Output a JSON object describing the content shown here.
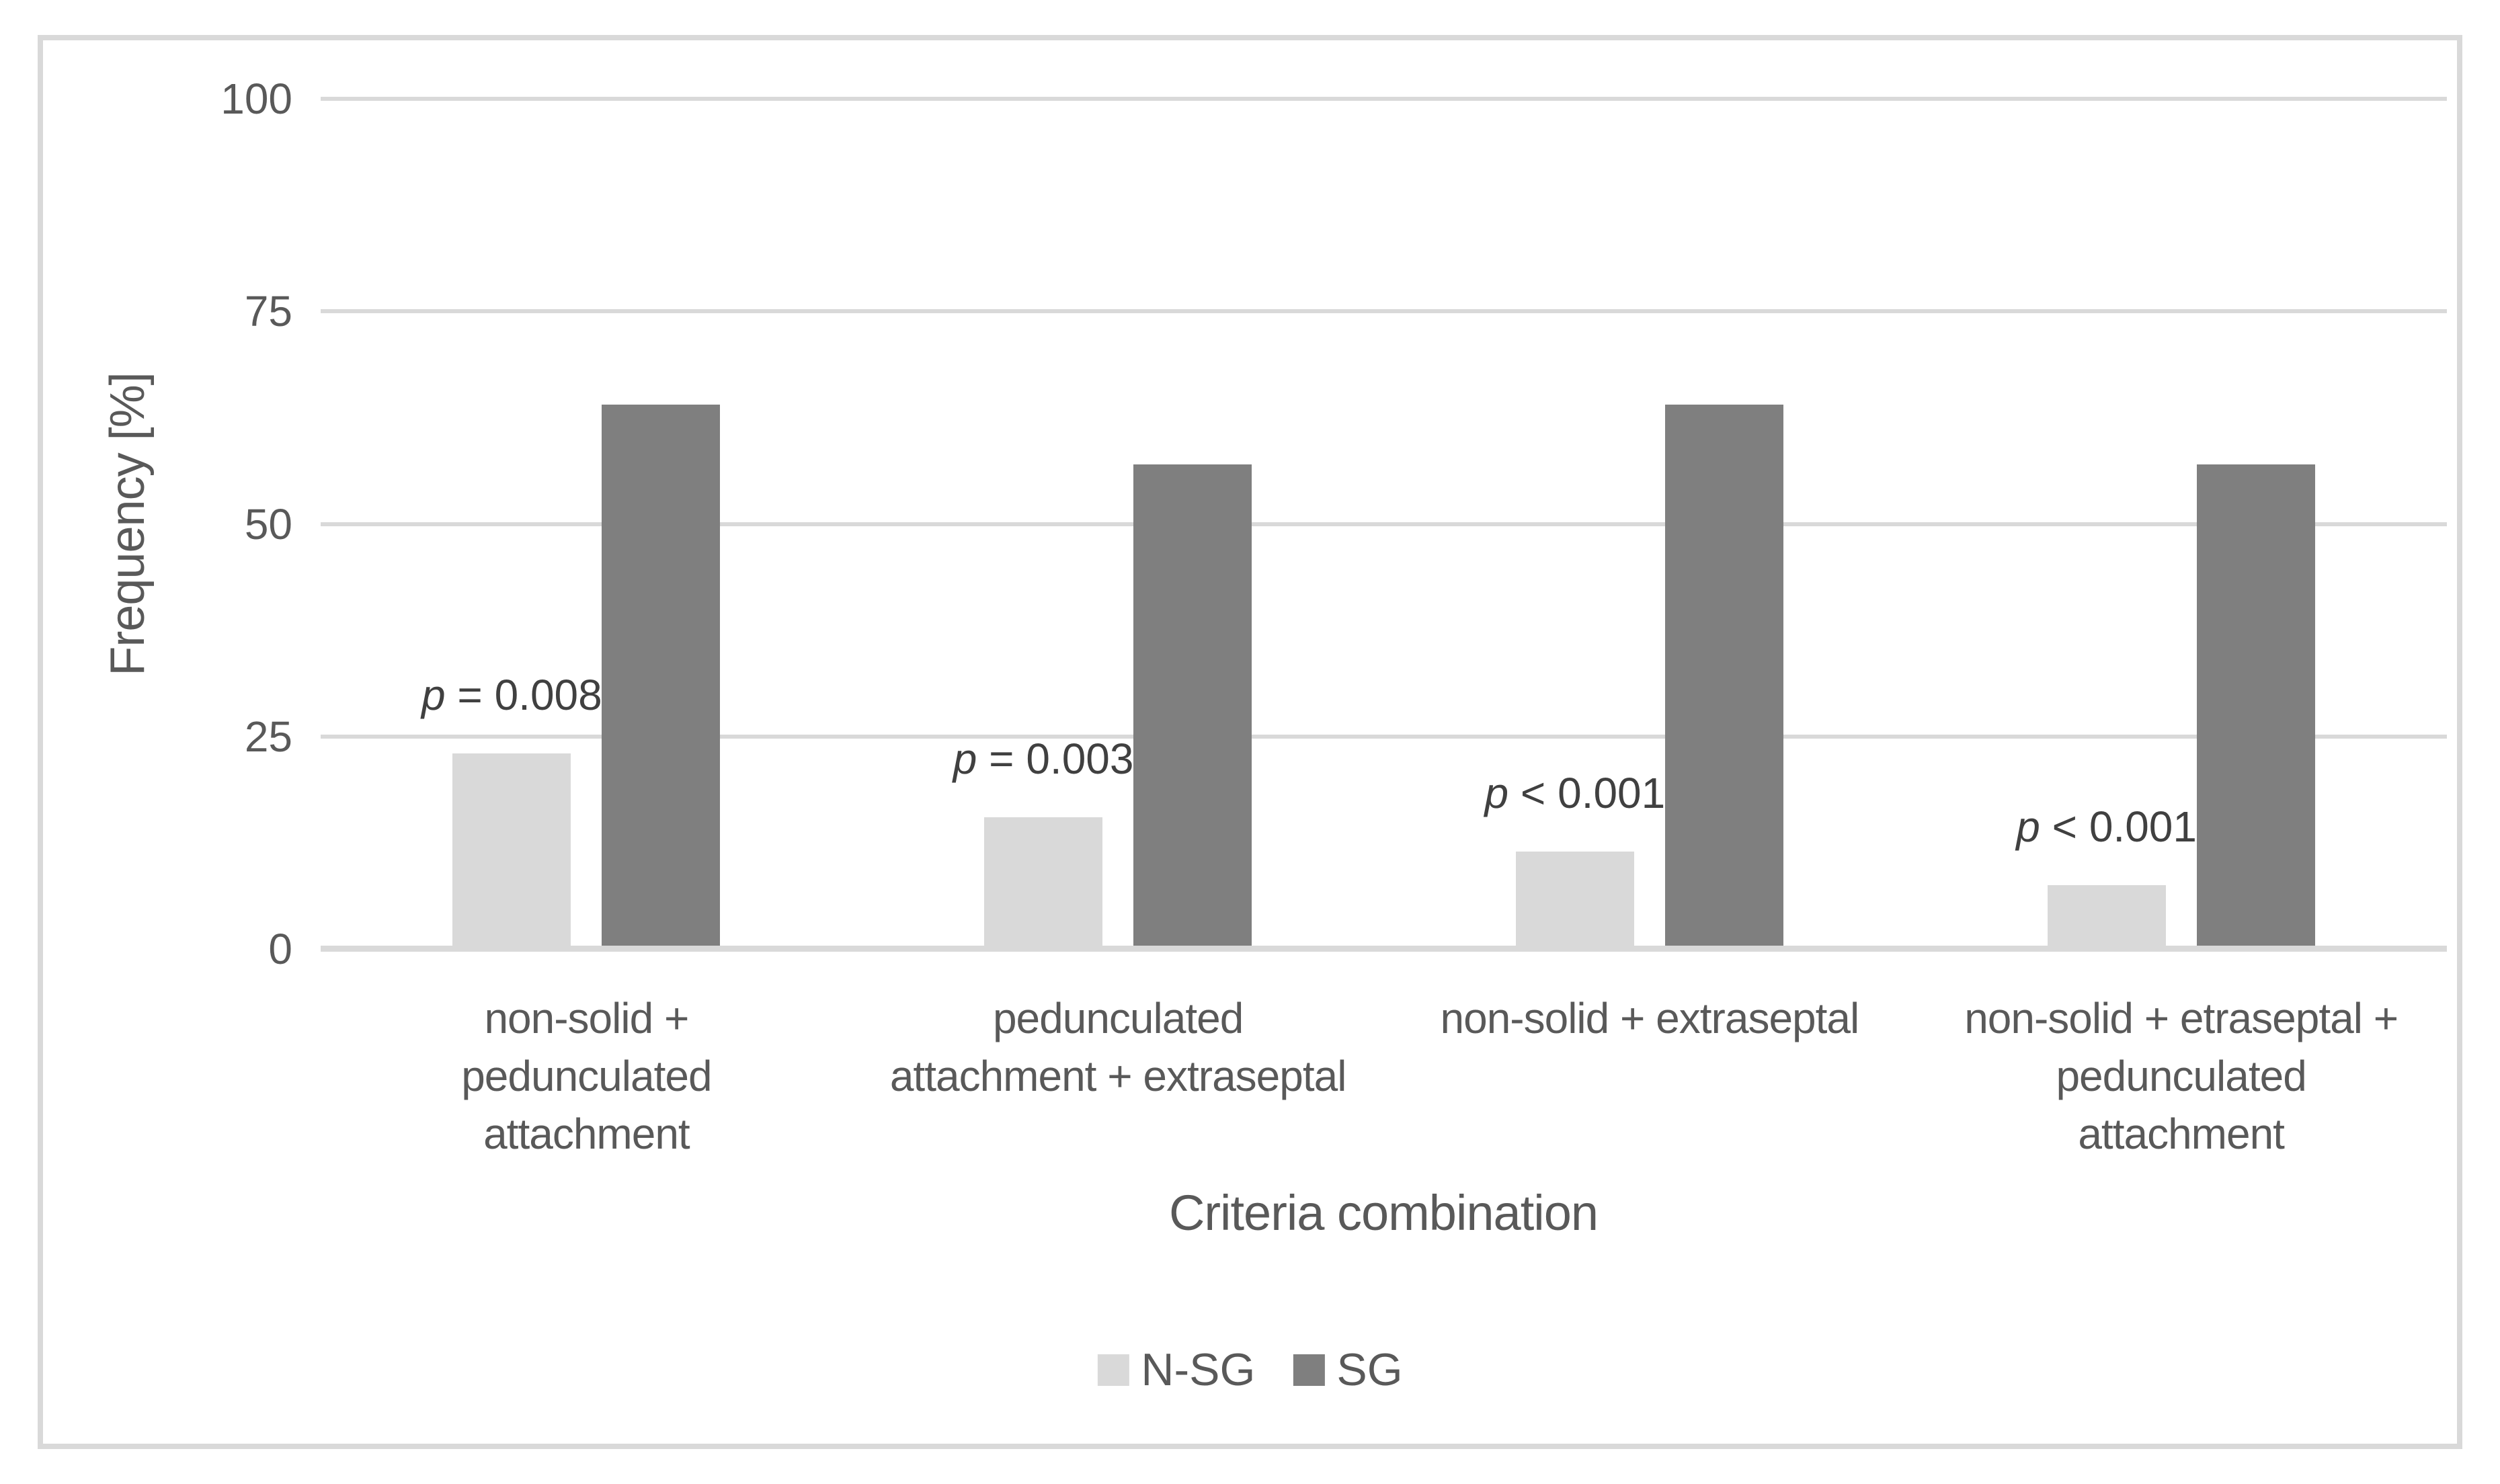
{
  "figure": {
    "background_color": "#ffffff",
    "frame_color": "#d9d9d9",
    "axis_text_color": "#595959",
    "annotation_text_color": "#404040",
    "gridline_color": "#d9d9d9"
  },
  "chart_data": {
    "type": "bar",
    "title": "",
    "xlabel": "Criteria combination",
    "ylabel": "Frequency [%]",
    "ylim": [
      0,
      100
    ],
    "yticks": [
      0,
      25,
      50,
      75,
      100
    ],
    "grid": true,
    "legend_position": "bottom-center",
    "categories": [
      "non-solid + pedunculated attachment",
      "pedunculated attachment + extraseptal",
      "non-solid + extraseptal",
      "non-solid + etraseptal + pedunculated attachment"
    ],
    "category_lines": [
      [
        "non-solid +",
        "pedunculated",
        "attachment"
      ],
      [
        "pedunculated",
        "attachment + extraseptal"
      ],
      [
        "non-solid + extraseptal"
      ],
      [
        "non-solid + etraseptal +",
        "pedunculated",
        "attachment"
      ]
    ],
    "series": [
      {
        "name": "N-SG",
        "color": "#d9d9d9",
        "values": [
          23,
          15.5,
          11.5,
          7.5
        ]
      },
      {
        "name": "SG",
        "color": "#7f7f7f",
        "values": [
          64,
          57,
          64,
          57
        ]
      }
    ],
    "annotations": [
      {
        "text": "p = 0.008",
        "anchor": "above-N-SG-bar"
      },
      {
        "text": "p = 0.003",
        "anchor": "above-N-SG-bar"
      },
      {
        "text": "p < 0.001",
        "anchor": "above-N-SG-bar"
      },
      {
        "text": "p < 0.001",
        "anchor": "above-N-SG-bar"
      }
    ]
  }
}
